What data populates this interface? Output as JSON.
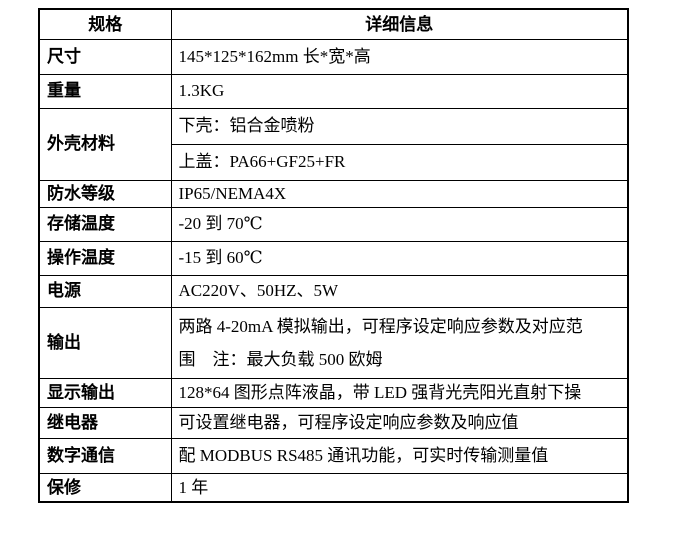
{
  "table": {
    "headers": {
      "col1": "规格",
      "col2": "详细信息"
    },
    "rows": [
      {
        "label": "尺寸",
        "value": "145*125*162mm 长*宽*高"
      },
      {
        "label": "重量",
        "value": "1.3KG"
      },
      {
        "label": "外壳材料",
        "values": [
          "下壳：铝合金喷粉",
          "上盖：PA66+GF25+FR"
        ]
      },
      {
        "label": "防水等级",
        "value": "IP65/NEMA4X"
      },
      {
        "label": "存储温度",
        "value": "-20 到 70℃"
      },
      {
        "label": "操作温度",
        "value": "-15 到 60℃"
      },
      {
        "label": "电源",
        "value": "AC220V、50HZ、5W"
      },
      {
        "label": "输出",
        "value_lines": [
          "两路 4-20mA 模拟输出，可程序设定响应参数及对应范",
          "围　注：最大负载 500 欧姆"
        ]
      },
      {
        "label": "显示输出",
        "value": "128*64 图形点阵液晶，带 LED 强背光壳阳光直射下操"
      },
      {
        "label": "继电器",
        "value": "可设置继电器，可程序设定响应参数及响应值"
      },
      {
        "label": "数字通信",
        "value": "配 MODBUS RS485 通讯功能，可实时传输测量值"
      },
      {
        "label": "保修",
        "value": "1 年"
      }
    ]
  }
}
